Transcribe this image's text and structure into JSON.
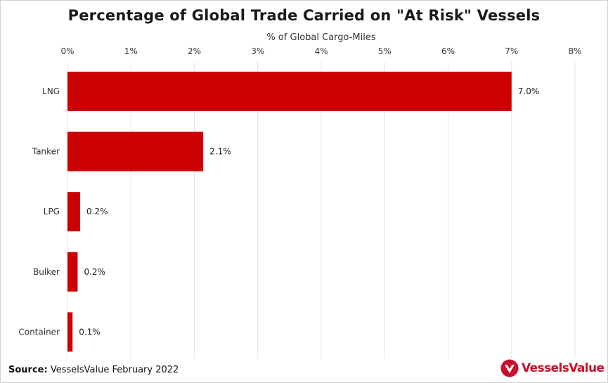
{
  "source": {
    "prefix": "Source:",
    "text": "VesselsValue February 2022"
  },
  "logo": {
    "text": "VesselsValue",
    "color": "#c8102e"
  },
  "chart_data": {
    "type": "bar",
    "orientation": "horizontal",
    "title": "Percentage of Global Trade Carried on \"At Risk\" Vessels",
    "xlabel": "% of Global Cargo-Miles",
    "ylabel": "",
    "xlim": [
      0,
      8
    ],
    "ticks": [
      0,
      1,
      2,
      3,
      4,
      5,
      6,
      7,
      8
    ],
    "tick_labels": [
      "0%",
      "1%",
      "2%",
      "3%",
      "4%",
      "5%",
      "6%",
      "7%",
      "8%"
    ],
    "axis_position": "top",
    "grid": true,
    "categories": [
      "LNG",
      "Tanker",
      "LPG",
      "Bulker",
      "Container"
    ],
    "values": [
      7.0,
      2.14,
      0.2,
      0.16,
      0.08
    ],
    "data_labels": [
      "7.0%",
      "2.1%",
      "0.2%",
      "0.2%",
      "0.1%"
    ],
    "bar_color": "#cc0000"
  }
}
